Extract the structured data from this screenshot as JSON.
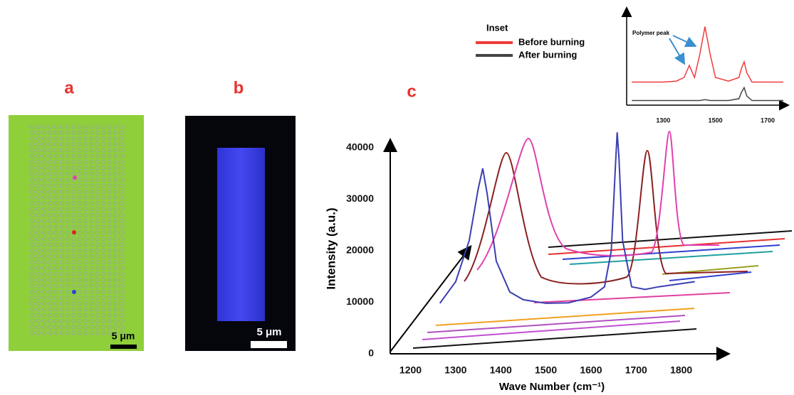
{
  "panels": {
    "a": {
      "label": "a",
      "scale_bar": "5 μm"
    },
    "b": {
      "label": "b",
      "scale_bar": "5 μm"
    },
    "c": {
      "label": "c"
    }
  },
  "chart_data": [
    {
      "type": "line",
      "xlabel": "Wave Number (cm⁻¹)",
      "ylabel": "Intensity (a.u.)",
      "xlim": [
        1155,
        1900
      ],
      "ylim": [
        0,
        41100
      ],
      "xticks": [
        1200,
        1300,
        1400,
        1500,
        1600,
        1700,
        1800
      ],
      "yticks": [
        0,
        10000,
        20000,
        30000,
        40000
      ],
      "series": [
        {
          "color": "#3b3fb0",
          "x": [
            1265,
            1300,
            1330,
            1350,
            1360,
            1370,
            1390,
            1420,
            1450,
            1500,
            1550,
            1600,
            1630,
            1645,
            1655,
            1658,
            1662,
            1670,
            1690,
            1720,
            1750,
            1790,
            1830
          ],
          "values": [
            9800,
            14000,
            22000,
            32000,
            36000,
            31000,
            18000,
            12000,
            10500,
            9800,
            9900,
            11000,
            13000,
            20000,
            38000,
            43000,
            38000,
            22000,
            13000,
            12500,
            13000,
            13500,
            14000
          ]
        }
      ]
    },
    {
      "type": "line",
      "legend_title": "Inset",
      "annotation": "Polymer peak",
      "xlim": [
        1160,
        1760
      ],
      "ylim": [
        0,
        100
      ],
      "xticks": [
        1300,
        1500,
        1700
      ],
      "series": [
        {
          "name": "Before burning",
          "color": "#ee3b3b",
          "x": [
            1180,
            1250,
            1300,
            1350,
            1380,
            1400,
            1420,
            1440,
            1460,
            1480,
            1500,
            1550,
            1590,
            1600,
            1610,
            1620,
            1640,
            1700,
            1760
          ],
          "values": [
            25,
            25,
            25,
            26,
            30,
            43,
            30,
            55,
            85,
            55,
            30,
            26,
            30,
            40,
            47,
            35,
            25,
            25,
            25
          ]
        },
        {
          "name": "After burning",
          "color": "#444444",
          "x": [
            1180,
            1250,
            1300,
            1350,
            1380,
            1400,
            1420,
            1440,
            1460,
            1480,
            1500,
            1550,
            1590,
            1600,
            1610,
            1620,
            1640,
            1700,
            1760
          ],
          "values": [
            5,
            5,
            5,
            5,
            5,
            5,
            5,
            5,
            6,
            5,
            5,
            5,
            7,
            14,
            19,
            10,
            5,
            5,
            5
          ]
        }
      ]
    }
  ]
}
